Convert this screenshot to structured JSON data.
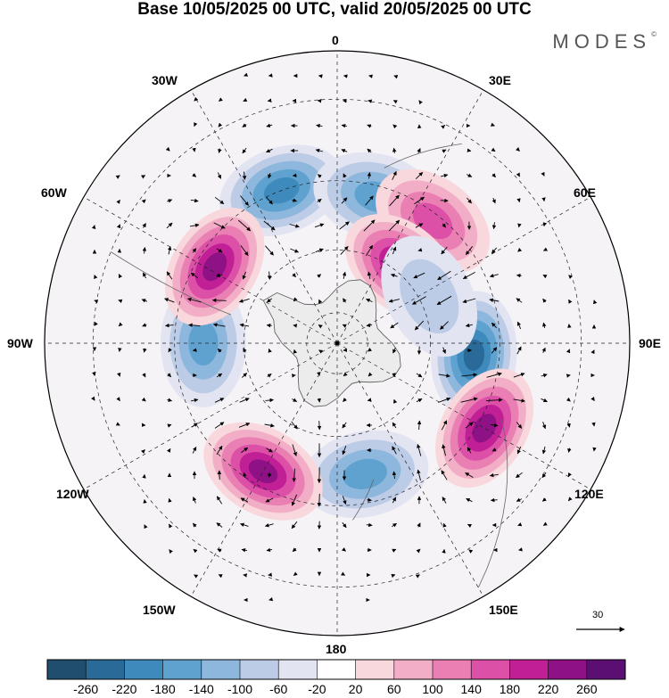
{
  "title": "Base 10/05/2025 00 UTC, valid 20/05/2025 00 UTC",
  "brand": "MODES",
  "brand_mark": "©",
  "longitude_labels": {
    "lon_0": "0",
    "lon_30e": "30E",
    "lon_60e": "60E",
    "lon_90e": "90E",
    "lon_120e": "120E",
    "lon_150e": "150E",
    "lon_180": "180",
    "lon_150w": "150W",
    "lon_120w": "120W",
    "lon_90w": "90W",
    "lon_60w": "60W",
    "lon_30w": "30W"
  },
  "vector_scale": {
    "label": "30"
  },
  "colorbar": {
    "labels": [
      "-260",
      "-220",
      "-180",
      "-140",
      "-100",
      "-60",
      "-20",
      "20",
      "60",
      "100",
      "140",
      "180",
      "220",
      "260"
    ],
    "colors": [
      "#1f4e6e",
      "#2a6a98",
      "#3f8abd",
      "#5fa2cf",
      "#8db7dc",
      "#bccbe6",
      "#e2e4f2",
      "#ffffff",
      "#f8d8dc",
      "#f2aec6",
      "#ea7fb4",
      "#dd50a7",
      "#c01f95",
      "#8e1186",
      "#5c0f72"
    ]
  },
  "map_features": {
    "projection": "south-polar-stereographic",
    "field": "shaded anomaly with wind vectors",
    "anomaly_centers": [
      {
        "lon": -20,
        "lat": -40,
        "value": -180
      },
      {
        "lon": 15,
        "lat": -43,
        "value": -150
      },
      {
        "lon": 38,
        "lat": -42,
        "value": 170
      },
      {
        "lon": 40,
        "lat": -58,
        "value": 220
      },
      {
        "lon": 95,
        "lat": -47,
        "value": -230
      },
      {
        "lon": 63,
        "lat": -57,
        "value": -90
      },
      {
        "lon": 120,
        "lat": -38,
        "value": 250
      },
      {
        "lon": 168,
        "lat": -48,
        "value": -170
      },
      {
        "lon": -150,
        "lat": -44,
        "value": 240
      },
      {
        "lon": -90,
        "lat": -48,
        "value": -150
      },
      {
        "lon": -58,
        "lat": -45,
        "value": 250
      }
    ]
  }
}
